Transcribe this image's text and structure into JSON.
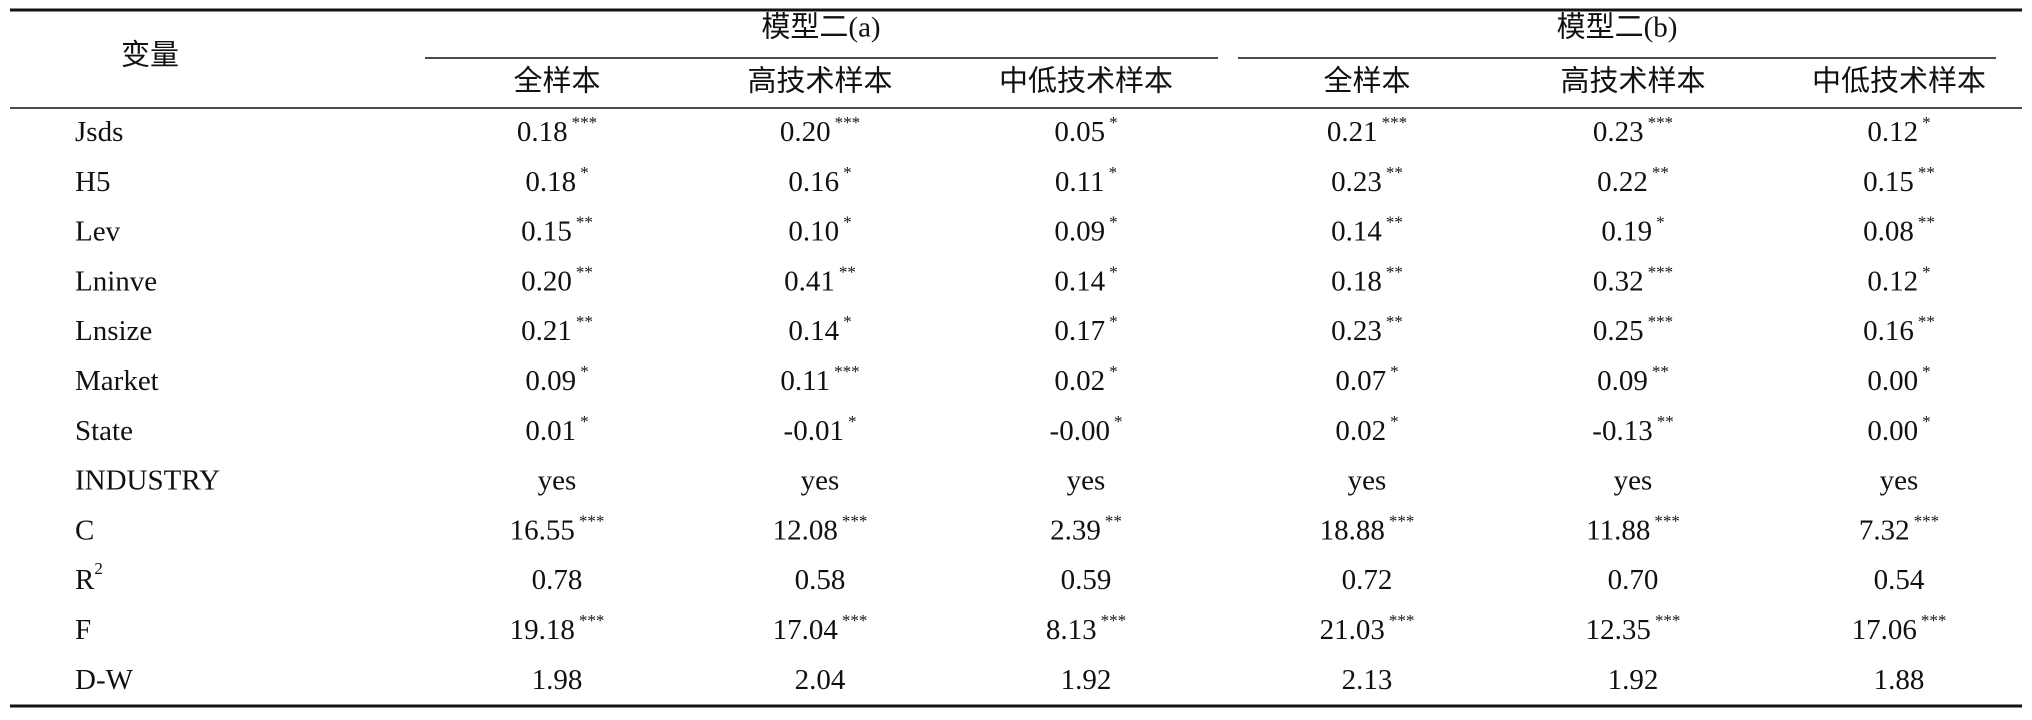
{
  "table": {
    "corner": "变量",
    "groups": [
      "模型二(a)",
      "模型二(b)"
    ],
    "columns": [
      "全样本",
      "高技术样本",
      "中低技术样本",
      "全样本",
      "高技术样本",
      "中低技术样本"
    ],
    "rows": [
      {
        "label": "Jsds",
        "cells": [
          {
            "v": "0.18",
            "s": "***"
          },
          {
            "v": "0.20",
            "s": "***"
          },
          {
            "v": "0.05",
            "s": "*"
          },
          {
            "v": "0.21",
            "s": "***"
          },
          {
            "v": "0.23",
            "s": "***"
          },
          {
            "v": "0.12",
            "s": "*"
          }
        ]
      },
      {
        "label": "H5",
        "cells": [
          {
            "v": "0.18",
            "s": "*"
          },
          {
            "v": "0.16",
            "s": "*"
          },
          {
            "v": "0.11",
            "s": "*"
          },
          {
            "v": "0.23",
            "s": "**"
          },
          {
            "v": "0.22",
            "s": "**"
          },
          {
            "v": "0.15",
            "s": "**"
          }
        ]
      },
      {
        "label": "Lev",
        "cells": [
          {
            "v": "0.15",
            "s": "**"
          },
          {
            "v": "0.10",
            "s": "*"
          },
          {
            "v": "0.09",
            "s": "*"
          },
          {
            "v": "0.14",
            "s": "**"
          },
          {
            "v": "0.19",
            "s": "*"
          },
          {
            "v": "0.08",
            "s": "**"
          }
        ]
      },
      {
        "label": "Lninve",
        "cells": [
          {
            "v": "0.20",
            "s": "**"
          },
          {
            "v": "0.41",
            "s": "**"
          },
          {
            "v": "0.14",
            "s": "*"
          },
          {
            "v": "0.18",
            "s": "**"
          },
          {
            "v": "0.32",
            "s": "***"
          },
          {
            "v": "0.12",
            "s": "*"
          }
        ]
      },
      {
        "label": "Lnsize",
        "cells": [
          {
            "v": "0.21",
            "s": "**"
          },
          {
            "v": "0.14",
            "s": "*"
          },
          {
            "v": "0.17",
            "s": "*"
          },
          {
            "v": "0.23",
            "s": "**"
          },
          {
            "v": "0.25",
            "s": "***"
          },
          {
            "v": "0.16",
            "s": "**"
          }
        ]
      },
      {
        "label": "Market",
        "cells": [
          {
            "v": "0.09",
            "s": "*"
          },
          {
            "v": "0.11",
            "s": "***"
          },
          {
            "v": "0.02",
            "s": "*"
          },
          {
            "v": "0.07",
            "s": "*"
          },
          {
            "v": "0.09",
            "s": "**"
          },
          {
            "v": "0.00",
            "s": "*"
          }
        ]
      },
      {
        "label": "State",
        "cells": [
          {
            "v": "0.01",
            "s": "*"
          },
          {
            "v": "-0.01",
            "s": "*"
          },
          {
            "v": "-0.00",
            "s": "*"
          },
          {
            "v": "0.02",
            "s": "*"
          },
          {
            "v": "-0.13",
            "s": "**"
          },
          {
            "v": "0.00",
            "s": "*"
          }
        ]
      },
      {
        "label": "INDUSTRY",
        "cells": [
          {
            "v": "yes"
          },
          {
            "v": "yes"
          },
          {
            "v": "yes"
          },
          {
            "v": "yes"
          },
          {
            "v": "yes"
          },
          {
            "v": "yes"
          }
        ]
      },
      {
        "label": "C",
        "cells": [
          {
            "v": "16.55",
            "s": "***"
          },
          {
            "v": "12.08",
            "s": "***"
          },
          {
            "v": "2.39",
            "s": "**"
          },
          {
            "v": "18.88",
            "s": "***"
          },
          {
            "v": "11.88",
            "s": "***"
          },
          {
            "v": "7.32",
            "s": "***"
          }
        ]
      },
      {
        "label": "R",
        "label_sup": "2",
        "cells": [
          {
            "v": "0.78"
          },
          {
            "v": "0.58"
          },
          {
            "v": "0.59"
          },
          {
            "v": "0.72"
          },
          {
            "v": "0.70"
          },
          {
            "v": "0.54"
          }
        ]
      },
      {
        "label": "F",
        "cells": [
          {
            "v": "19.18",
            "s": "***"
          },
          {
            "v": "17.04",
            "s": "***"
          },
          {
            "v": "8.13",
            "s": "***"
          },
          {
            "v": "21.03",
            "s": "***"
          },
          {
            "v": "12.35",
            "s": "***"
          },
          {
            "v": "17.06",
            "s": "***"
          }
        ]
      },
      {
        "label": "D-W",
        "cells": [
          {
            "v": "1.98"
          },
          {
            "v": "2.04"
          },
          {
            "v": "1.92"
          },
          {
            "v": "2.13"
          },
          {
            "v": "1.92"
          },
          {
            "v": "1.88"
          }
        ]
      }
    ]
  }
}
